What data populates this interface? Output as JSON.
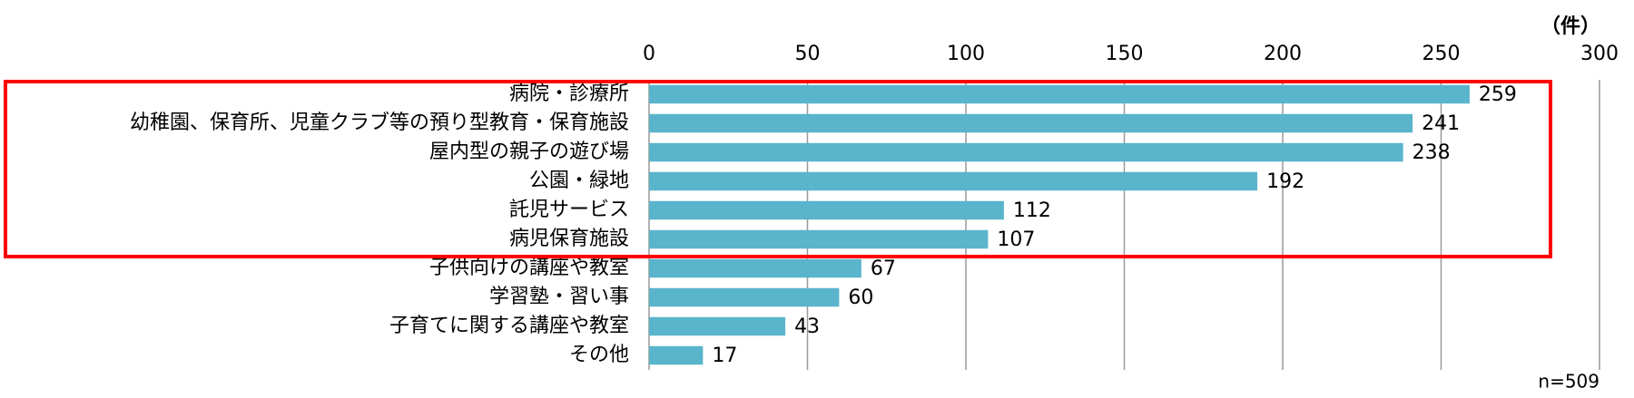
{
  "chart_data": {
    "type": "barh",
    "unit_label": "（件）",
    "note": "n=509",
    "categories": [
      "病院・診療所",
      "幼稚園、保育所、児童クラブ等の預り型教育・保育施設",
      "屋内型の親子の遊び場",
      "公園・緑地",
      "託児サービス",
      "病児保育施設",
      "子供向けの講座や教室",
      "学習塾・習い事",
      "子育てに関する講座や教室",
      "その他"
    ],
    "values": [
      259,
      241,
      238,
      192,
      112,
      107,
      67,
      60,
      43,
      17
    ],
    "color": "#5ab4cb",
    "xlim": [
      0,
      300
    ],
    "xticks": [
      0,
      50,
      100,
      150,
      200,
      250,
      300
    ],
    "grid": true
  }
}
